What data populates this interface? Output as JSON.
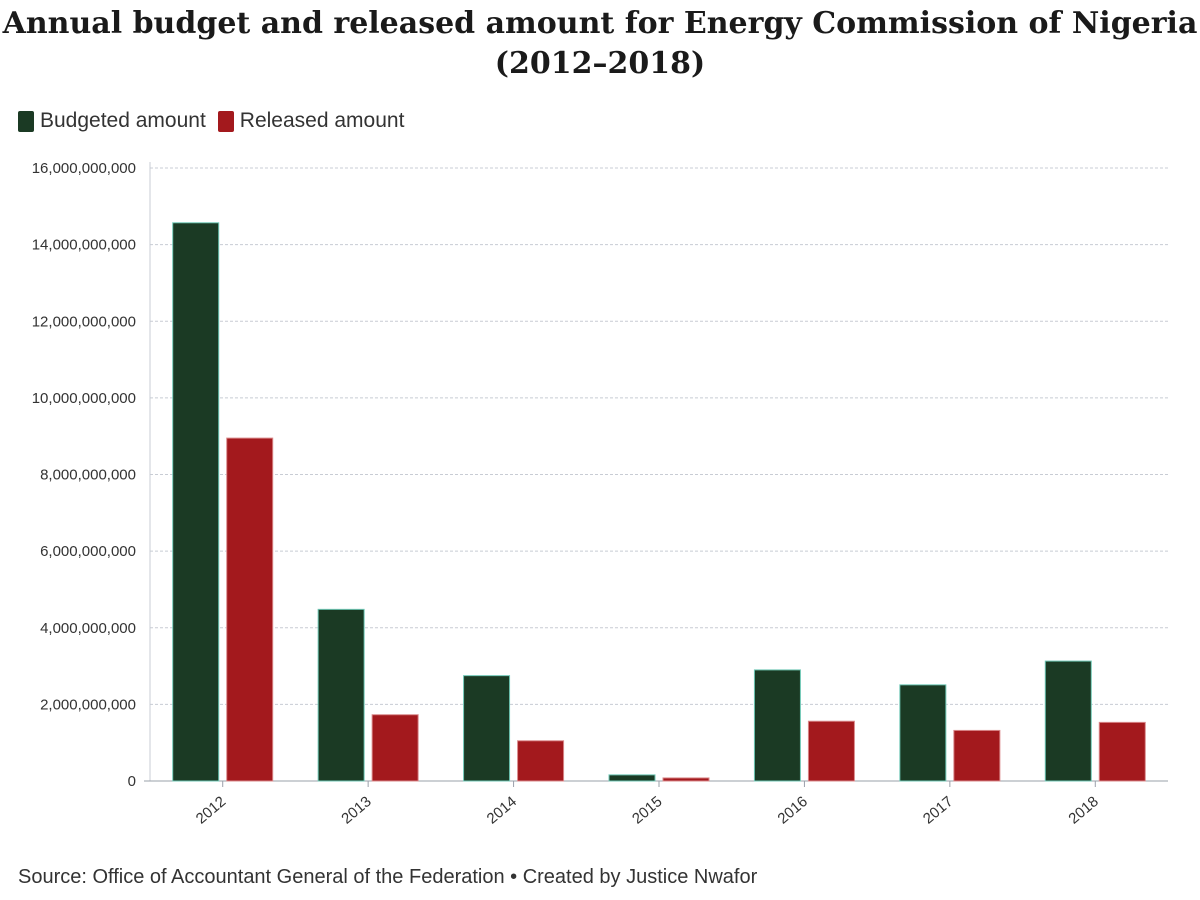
{
  "chart_data": {
    "type": "bar",
    "title_lines": [
      "Annual budget and released amount for Energy Commission of Nigeria",
      "(2012–2018)"
    ],
    "categories": [
      "2012",
      "2013",
      "2014",
      "2015",
      "2016",
      "2017",
      "2018"
    ],
    "series": [
      {
        "name": "Budgeted amount",
        "color": "#1b3a24",
        "values": [
          14570000000,
          4480000000,
          2750000000,
          160000000,
          2900000000,
          2510000000,
          3130000000
        ]
      },
      {
        "name": "Released amount",
        "color": "#a3191d",
        "values": [
          8950000000,
          1730000000,
          1050000000,
          80000000,
          1560000000,
          1320000000,
          1530000000
        ]
      }
    ],
    "ylim": [
      0,
      16000000000
    ],
    "yticks": [
      {
        "value": 0,
        "label": "0"
      },
      {
        "value": 2000000000,
        "label": "2,000,000,000"
      },
      {
        "value": 4000000000,
        "label": "4,000,000,000"
      },
      {
        "value": 6000000000,
        "label": "6,000,000,000"
      },
      {
        "value": 8000000000,
        "label": "8,000,000,000"
      },
      {
        "value": 10000000000,
        "label": "10,000,000,000"
      },
      {
        "value": 12000000000,
        "label": "12,000,000,000"
      },
      {
        "value": 14000000000,
        "label": "14,000,000,000"
      },
      {
        "value": 16000000000,
        "label": "16,000,000,000"
      }
    ],
    "grid": true,
    "legend_position": "top-left",
    "source": "Source: Office of Accountant General of the Federation • Created by Justice Nwafor"
  }
}
